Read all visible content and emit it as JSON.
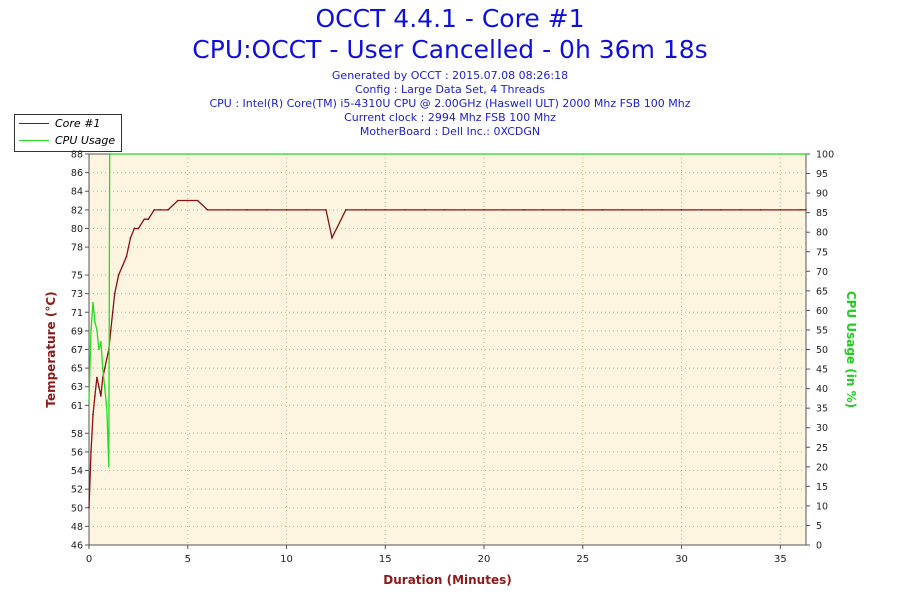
{
  "chart_data": {
    "type": "line",
    "title": "OCCT 4.4.1 - Core #1",
    "subtitle": "CPU:OCCT - User Cancelled - 0h 36m 18s",
    "info_lines": [
      "Generated by OCCT : 2015.07.08 08:26:18",
      "Config : Large Data Set, 4 Threads",
      "CPU : Intel(R) Core(TM) i5-4310U CPU @ 2.00GHz (Haswell ULT) 2000 Mhz FSB 100 Mhz",
      "Current clock : 2994 Mhz FSB 100 Mhz",
      "MotherBoard : Dell Inc.: 0XCDGN"
    ],
    "xlabel": "Duration (Minutes)",
    "ylabel": "Temperature (°C)",
    "y2label": "CPU Usage (in %)",
    "xlim": [
      0,
      36.3
    ],
    "ylim": [
      46,
      88
    ],
    "y2lim": [
      0,
      100
    ],
    "x_ticks": [
      0,
      5,
      10,
      15,
      20,
      25,
      30,
      35
    ],
    "y_ticks": [
      46,
      48,
      50,
      52,
      54,
      56,
      58,
      61,
      63,
      65,
      67,
      69,
      71,
      73,
      75,
      78,
      80,
      82,
      84,
      86,
      88
    ],
    "y2_ticks": [
      0,
      5,
      10,
      15,
      20,
      25,
      30,
      35,
      40,
      45,
      50,
      55,
      60,
      65,
      70,
      75,
      80,
      85,
      90,
      95,
      100
    ],
    "grid": true,
    "legend_position": "top-left",
    "series": [
      {
        "name": "Core #1",
        "color": "#8b1010",
        "axis": "left",
        "x": [
          0,
          0.1,
          0.2,
          0.3,
          0.4,
          0.5,
          0.6,
          0.7,
          0.8,
          0.9,
          1.0,
          1.1,
          1.2,
          1.3,
          1.5,
          1.7,
          1.9,
          2.1,
          2.3,
          2.5,
          2.8,
          3.0,
          3.3,
          3.6,
          4.0,
          4.5,
          5.0,
          5.5,
          6.0,
          7.0,
          8.0,
          9.0,
          10.0,
          11.0,
          12.0,
          12.3,
          13.0,
          14.0,
          15.0,
          16.0,
          17.0,
          18.0,
          19.0,
          20.0,
          21.0,
          22.0,
          23.0,
          24.0,
          25.0,
          26.0,
          27.0,
          28.0,
          29.0,
          30.0,
          31.0,
          32.0,
          33.0,
          34.0,
          35.0,
          36.0,
          36.3
        ],
        "values": [
          50,
          56,
          60,
          62,
          64,
          63,
          62,
          64,
          65,
          66,
          67,
          69,
          71,
          73,
          75,
          76,
          77,
          79,
          80,
          80,
          81,
          81,
          82,
          82,
          82,
          83,
          83,
          83,
          82,
          82,
          82,
          82,
          82,
          82,
          82,
          79,
          82,
          82,
          82,
          82,
          82,
          82,
          82,
          82,
          82,
          82,
          82,
          82,
          82,
          82,
          82,
          82,
          82,
          82,
          82,
          82,
          82,
          82,
          82,
          82,
          82
        ]
      },
      {
        "name": "CPU Usage",
        "color": "#22dd22",
        "axis": "right",
        "x": [
          0,
          0.1,
          0.2,
          0.3,
          0.4,
          0.5,
          0.6,
          0.7,
          0.8,
          0.9,
          1.0,
          1.05,
          1.1,
          36.3
        ],
        "values": [
          37,
          55,
          62,
          57,
          55,
          50,
          52,
          45,
          40,
          35,
          20,
          100,
          100,
          100
        ]
      }
    ]
  }
}
